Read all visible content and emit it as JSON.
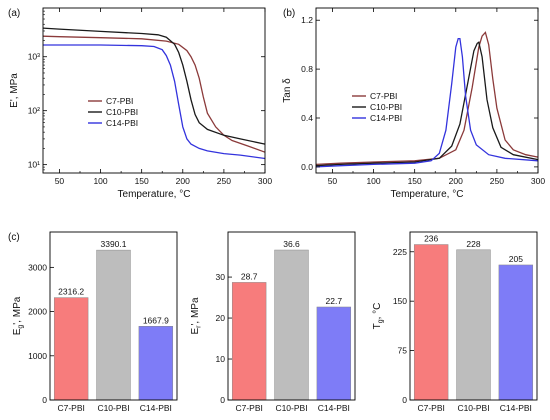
{
  "panels": {
    "a": "(a)",
    "b": "(b)",
    "c": "(c)"
  },
  "chart_data": [
    {
      "type": "line",
      "panel": "(a)",
      "xlabel": "Temperature, °C",
      "ylabel": "E', MPa",
      "xlim": [
        30,
        300
      ],
      "ylim": [
        7,
        8000
      ],
      "yscale": "log",
      "xticks": [
        50,
        100,
        150,
        200,
        250,
        300
      ],
      "yticks": [
        10,
        100,
        1000
      ],
      "ytick_labels": [
        "10¹",
        "10²",
        "10³"
      ],
      "legend_position": "center-left",
      "series": [
        {
          "name": "C7-PBI",
          "color": "#8b3a3a",
          "x": [
            30,
            50,
            100,
            150,
            180,
            195,
            205,
            210,
            215,
            220,
            225,
            230,
            240,
            250,
            260,
            280,
            300
          ],
          "y": [
            2400,
            2350,
            2250,
            2150,
            1950,
            1700,
            1300,
            1000,
            700,
            400,
            180,
            90,
            50,
            35,
            28,
            22,
            17
          ]
        },
        {
          "name": "C10-PBI",
          "color": "#1a1a1a",
          "x": [
            30,
            50,
            100,
            150,
            170,
            180,
            190,
            195,
            200,
            205,
            210,
            215,
            220,
            230,
            250,
            270,
            300
          ],
          "y": [
            3400,
            3250,
            2950,
            2700,
            2550,
            2300,
            1700,
            1200,
            700,
            350,
            160,
            85,
            60,
            45,
            35,
            30,
            24
          ]
        },
        {
          "name": "C14-PBI",
          "color": "#3333dd",
          "x": [
            30,
            50,
            100,
            150,
            165,
            175,
            180,
            185,
            190,
            195,
            200,
            205,
            210,
            220,
            230,
            250,
            270,
            300
          ],
          "y": [
            1650,
            1650,
            1650,
            1600,
            1550,
            1350,
            1050,
            700,
            350,
            130,
            50,
            30,
            24,
            20,
            18,
            16,
            15,
            13
          ]
        }
      ]
    },
    {
      "type": "line",
      "panel": "(b)",
      "xlabel": "Temperature, °C",
      "ylabel": "Tan δ",
      "xlim": [
        30,
        300
      ],
      "ylim": [
        -0.05,
        1.3
      ],
      "xticks": [
        50,
        100,
        150,
        200,
        250,
        300
      ],
      "yticks": [
        0.0,
        0.4,
        0.8,
        1.2
      ],
      "legend_position": "center-right",
      "series": [
        {
          "name": "C7-PBI",
          "color": "#8b3a3a",
          "x": [
            30,
            60,
            100,
            150,
            180,
            200,
            210,
            220,
            228,
            232,
            236,
            240,
            245,
            250,
            260,
            270,
            285,
            300
          ],
          "y": [
            0.02,
            0.03,
            0.04,
            0.05,
            0.07,
            0.14,
            0.3,
            0.65,
            0.98,
            1.07,
            1.1,
            1.0,
            0.72,
            0.48,
            0.22,
            0.14,
            0.1,
            0.08
          ]
        },
        {
          "name": "C10-PBI",
          "color": "#1a1a1a",
          "x": [
            30,
            60,
            100,
            150,
            180,
            195,
            205,
            215,
            222,
            226,
            228,
            232,
            238,
            245,
            255,
            270,
            300
          ],
          "y": [
            0.01,
            0.02,
            0.03,
            0.04,
            0.07,
            0.17,
            0.35,
            0.7,
            0.95,
            1.01,
            1.02,
            0.9,
            0.55,
            0.32,
            0.16,
            0.1,
            0.06
          ]
        },
        {
          "name": "C14-PBI",
          "color": "#3333dd",
          "x": [
            30,
            60,
            100,
            150,
            170,
            180,
            188,
            195,
            200,
            203,
            205,
            208,
            212,
            218,
            225,
            240,
            260,
            300
          ],
          "y": [
            0.0,
            0.01,
            0.02,
            0.03,
            0.05,
            0.11,
            0.3,
            0.68,
            0.98,
            1.05,
            1.05,
            0.9,
            0.58,
            0.3,
            0.18,
            0.1,
            0.07,
            0.05
          ]
        }
      ]
    },
    {
      "type": "bar",
      "panel": "(c)",
      "ylabel": "E_g', MPa",
      "ylabel_main": "E",
      "ylabel_sub": "g",
      "ylabel_rest": "', MPa",
      "categories": [
        "C7-PBI",
        "C10-PBI",
        "C14-PBI"
      ],
      "values": [
        2316.2,
        3390.1,
        1667.9
      ],
      "value_labels": [
        "2316.2",
        "3390.1",
        "1667.9"
      ],
      "colors": [
        "#f77c7c",
        "#bdbdbd",
        "#7e7cf7"
      ],
      "ylim": [
        0,
        3800
      ],
      "yticks": [
        0,
        1000,
        2000,
        3000
      ]
    },
    {
      "type": "bar",
      "panel": "(c)",
      "ylabel": "E_r', MPa",
      "ylabel_main": "E",
      "ylabel_sub": "r",
      "ylabel_rest": "', MPa",
      "categories": [
        "C7-PBI",
        "C10-PBI",
        "C14-PBI"
      ],
      "values": [
        28.7,
        36.6,
        22.7
      ],
      "value_labels": [
        "28.7",
        "36.6",
        "22.7"
      ],
      "colors": [
        "#f77c7c",
        "#bdbdbd",
        "#7e7cf7"
      ],
      "ylim": [
        0,
        41
      ],
      "yticks": [
        0,
        10,
        20,
        30
      ]
    },
    {
      "type": "bar",
      "panel": "(c)",
      "ylabel": "T_g, °C",
      "ylabel_main": "T",
      "ylabel_sub": "g",
      "ylabel_rest": ", °C",
      "categories": [
        "C7-PBI",
        "C10-PBI",
        "C14-PBI"
      ],
      "values": [
        236,
        228,
        205
      ],
      "value_labels": [
        "236",
        "228",
        "205"
      ],
      "colors": [
        "#f77c7c",
        "#bdbdbd",
        "#7e7cf7"
      ],
      "ylim": [
        0,
        255
      ],
      "yticks": [
        0,
        75,
        150,
        225
      ]
    }
  ]
}
